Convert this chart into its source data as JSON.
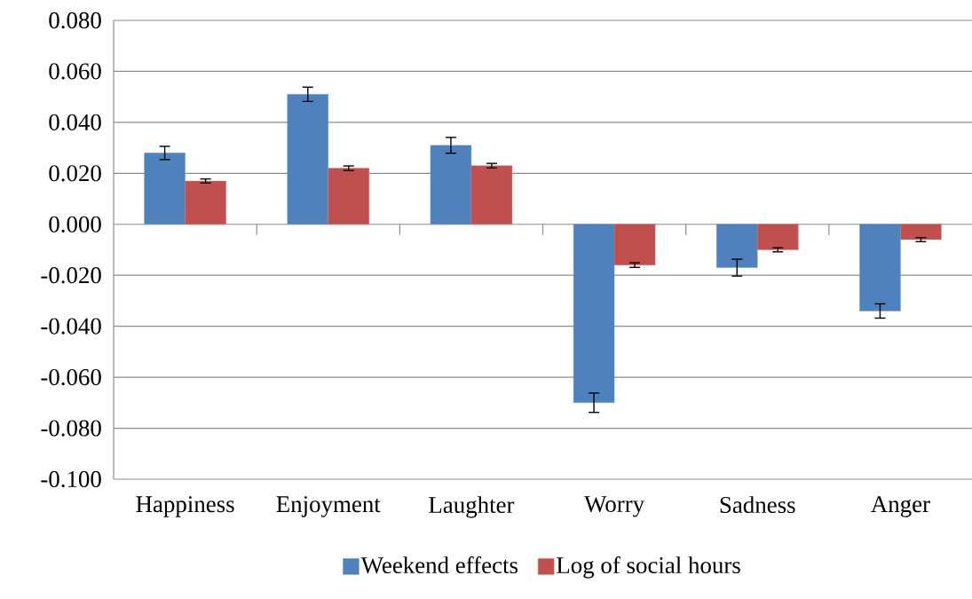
{
  "chart_data": {
    "type": "bar",
    "categories": [
      "Happiness",
      "Enjoyment",
      "Laughter",
      "Worry",
      "Sadness",
      "Anger"
    ],
    "series": [
      {
        "name": "Weekend effects",
        "color": "#4f81bd",
        "values": [
          0.028,
          0.051,
          0.031,
          -0.07,
          -0.017,
          -0.034
        ],
        "errors": [
          0.0026,
          0.0028,
          0.0031,
          0.0038,
          0.0033,
          0.0028
        ]
      },
      {
        "name": "Log of social hours",
        "color": "#c0504d",
        "values": [
          0.017,
          0.022,
          0.023,
          -0.016,
          -0.01,
          -0.006
        ],
        "errors": [
          0.0008,
          0.0009,
          0.0009,
          0.0009,
          0.0008,
          0.0008
        ]
      }
    ],
    "ylim": [
      -0.1,
      0.08
    ],
    "yticks": [
      {
        "value": -0.1,
        "label": "-0.100"
      },
      {
        "value": -0.08,
        "label": "-0.080"
      },
      {
        "value": -0.06,
        "label": "-0.060"
      },
      {
        "value": -0.04,
        "label": "-0.040"
      },
      {
        "value": -0.02,
        "label": "-0.020"
      },
      {
        "value": 0,
        "label": "0.000"
      },
      {
        "value": 0.02,
        "label": "0.020"
      },
      {
        "value": 0.04,
        "label": "0.040"
      },
      {
        "value": 0.06,
        "label": "0.060"
      },
      {
        "value": 0.08,
        "label": "0.080"
      }
    ],
    "grid": "y",
    "legend": "bottom"
  }
}
